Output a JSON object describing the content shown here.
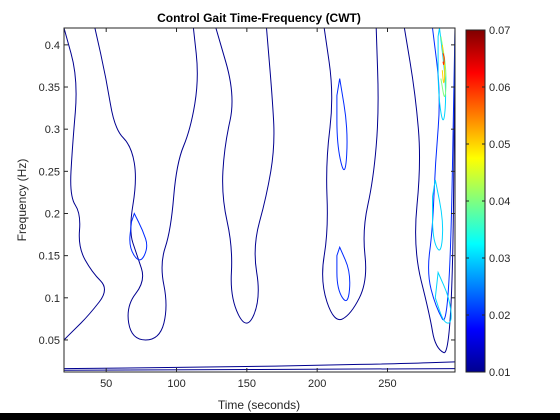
{
  "chart_data": {
    "type": "heatmap",
    "subtype": "contour",
    "title": "Control Gait Time-Frequency (CWT)",
    "xlabel": "Time (seconds)",
    "ylabel": "Frequency (Hz)",
    "xlim": [
      20,
      298
    ],
    "ylim": [
      0.012,
      0.42
    ],
    "xticks": [
      50,
      100,
      150,
      200,
      250
    ],
    "yticks": [
      0.05,
      0.1,
      0.15,
      0.2,
      0.25,
      0.3,
      0.35,
      0.4
    ],
    "xtick_labels": [
      "50",
      "100",
      "150",
      "200",
      "250"
    ],
    "ytick_labels": [
      "0.05",
      "0.1",
      "0.15",
      "0.2",
      "0.25",
      "0.3",
      "0.35",
      "0.4"
    ],
    "colorbar": {
      "colormap": "jet",
      "range": [
        0.01,
        0.07
      ],
      "ticks": [
        0.01,
        0.02,
        0.03,
        0.04,
        0.05,
        0.06,
        0.07
      ],
      "tick_labels": [
        "0.01",
        "0.02",
        "0.03",
        "0.04",
        "0.05",
        "0.06",
        "0.07"
      ]
    },
    "grid": false,
    "peaks": [
      {
        "time": 290,
        "freq": 0.38,
        "magnitude": 0.068
      },
      {
        "time": 290,
        "freq": 0.1,
        "magnitude": 0.045
      },
      {
        "time": 286,
        "freq": 0.2,
        "magnitude": 0.032
      },
      {
        "time": 220,
        "freq": 0.32,
        "magnitude": 0.022
      }
    ],
    "contours": [
      {
        "level": 0.01,
        "points": [
          [
            20,
            0.42
          ],
          [
            30,
            0.36
          ],
          [
            26,
            0.28
          ],
          [
            24,
            0.22
          ],
          [
            32,
            0.2
          ],
          [
            30,
            0.16
          ],
          [
            40,
            0.13
          ],
          [
            52,
            0.11
          ],
          [
            38,
            0.08
          ],
          [
            26,
            0.06
          ],
          [
            20,
            0.05
          ]
        ]
      },
      {
        "level": 0.01,
        "points": [
          [
            42,
            0.42
          ],
          [
            50,
            0.36
          ],
          [
            56,
            0.3
          ],
          [
            68,
            0.28
          ],
          [
            72,
            0.24
          ],
          [
            66,
            0.18
          ],
          [
            72,
            0.15
          ],
          [
            78,
            0.12
          ],
          [
            64,
            0.09
          ],
          [
            68,
            0.05
          ],
          [
            88,
            0.05
          ],
          [
            94,
            0.09
          ],
          [
            88,
            0.14
          ],
          [
            96,
            0.18
          ],
          [
            100,
            0.26
          ],
          [
            110,
            0.3
          ],
          [
            116,
            0.36
          ],
          [
            112,
            0.42
          ]
        ]
      },
      {
        "level": 0.01,
        "points": [
          [
            128,
            0.42
          ],
          [
            142,
            0.34
          ],
          [
            134,
            0.28
          ],
          [
            132,
            0.22
          ],
          [
            140,
            0.16
          ],
          [
            138,
            0.1
          ],
          [
            150,
            0.06
          ],
          [
            160,
            0.1
          ],
          [
            154,
            0.16
          ],
          [
            164,
            0.22
          ],
          [
            170,
            0.28
          ],
          [
            168,
            0.34
          ],
          [
            164,
            0.42
          ]
        ]
      },
      {
        "level": 0.01,
        "points": [
          [
            205,
            0.42
          ],
          [
            212,
            0.34
          ],
          [
            206,
            0.26
          ],
          [
            208,
            0.18
          ],
          [
            202,
            0.12
          ],
          [
            212,
            0.07
          ],
          [
            224,
            0.08
          ],
          [
            236,
            0.12
          ],
          [
            232,
            0.18
          ],
          [
            240,
            0.24
          ],
          [
            244,
            0.32
          ],
          [
            242,
            0.42
          ]
        ]
      },
      {
        "level": 0.01,
        "points": [
          [
            262,
            0.42
          ],
          [
            270,
            0.34
          ],
          [
            274,
            0.26
          ],
          [
            268,
            0.16
          ],
          [
            280,
            0.08
          ],
          [
            284,
            0.04
          ],
          [
            296,
            0.03
          ],
          [
            298,
            0.42
          ]
        ]
      },
      {
        "level": 0.02,
        "points": [
          [
            70,
            0.2
          ],
          [
            76,
            0.18
          ],
          [
            80,
            0.16
          ],
          [
            74,
            0.14
          ],
          [
            66,
            0.16
          ],
          [
            68,
            0.19
          ]
        ]
      },
      {
        "level": 0.02,
        "points": [
          [
            216,
            0.36
          ],
          [
            222,
            0.3
          ],
          [
            220,
            0.24
          ],
          [
            214,
            0.28
          ],
          [
            214,
            0.34
          ]
        ]
      },
      {
        "level": 0.02,
        "points": [
          [
            216,
            0.16
          ],
          [
            224,
            0.13
          ],
          [
            222,
            0.09
          ],
          [
            214,
            0.11
          ],
          [
            214,
            0.15
          ]
        ]
      },
      {
        "level": 0.02,
        "points": [
          [
            282,
            0.42
          ],
          [
            288,
            0.34
          ],
          [
            284,
            0.26
          ],
          [
            282,
            0.18
          ],
          [
            278,
            0.13
          ],
          [
            284,
            0.09
          ],
          [
            294,
            0.06
          ],
          [
            298,
            0.42
          ]
        ]
      },
      {
        "level": 0.03,
        "points": [
          [
            284,
            0.24
          ],
          [
            290,
            0.19
          ],
          [
            288,
            0.15
          ],
          [
            282,
            0.17
          ],
          [
            282,
            0.22
          ]
        ]
      },
      {
        "level": 0.03,
        "points": [
          [
            286,
            0.13
          ],
          [
            294,
            0.1
          ],
          [
            296,
            0.07
          ],
          [
            290,
            0.07
          ],
          [
            284,
            0.1
          ]
        ]
      },
      {
        "level": 0.03,
        "points": [
          [
            287,
            0.42
          ],
          [
            292,
            0.35
          ],
          [
            290,
            0.3
          ],
          [
            286,
            0.34
          ],
          [
            286,
            0.41
          ]
        ]
      },
      {
        "level": 0.04,
        "points": [
          [
            288,
            0.41
          ],
          [
            292,
            0.37
          ],
          [
            291,
            0.33
          ],
          [
            288,
            0.36
          ]
        ]
      },
      {
        "level": 0.05,
        "points": [
          [
            289,
            0.4
          ],
          [
            291,
            0.37
          ],
          [
            290,
            0.35
          ],
          [
            289,
            0.37
          ]
        ]
      },
      {
        "level": 0.06,
        "points": [
          [
            289.5,
            0.39
          ],
          [
            290.5,
            0.385
          ],
          [
            290,
            0.375
          ],
          [
            289.5,
            0.38
          ]
        ]
      },
      {
        "level": 0.01,
        "points": [
          [
            20,
            0.016
          ],
          [
            140,
            0.018
          ],
          [
            200,
            0.02
          ],
          [
            260,
            0.022
          ],
          [
            298,
            0.024
          ]
        ]
      },
      {
        "level": 0.01,
        "points": [
          [
            20,
            0.014
          ],
          [
            298,
            0.016
          ]
        ]
      }
    ]
  }
}
